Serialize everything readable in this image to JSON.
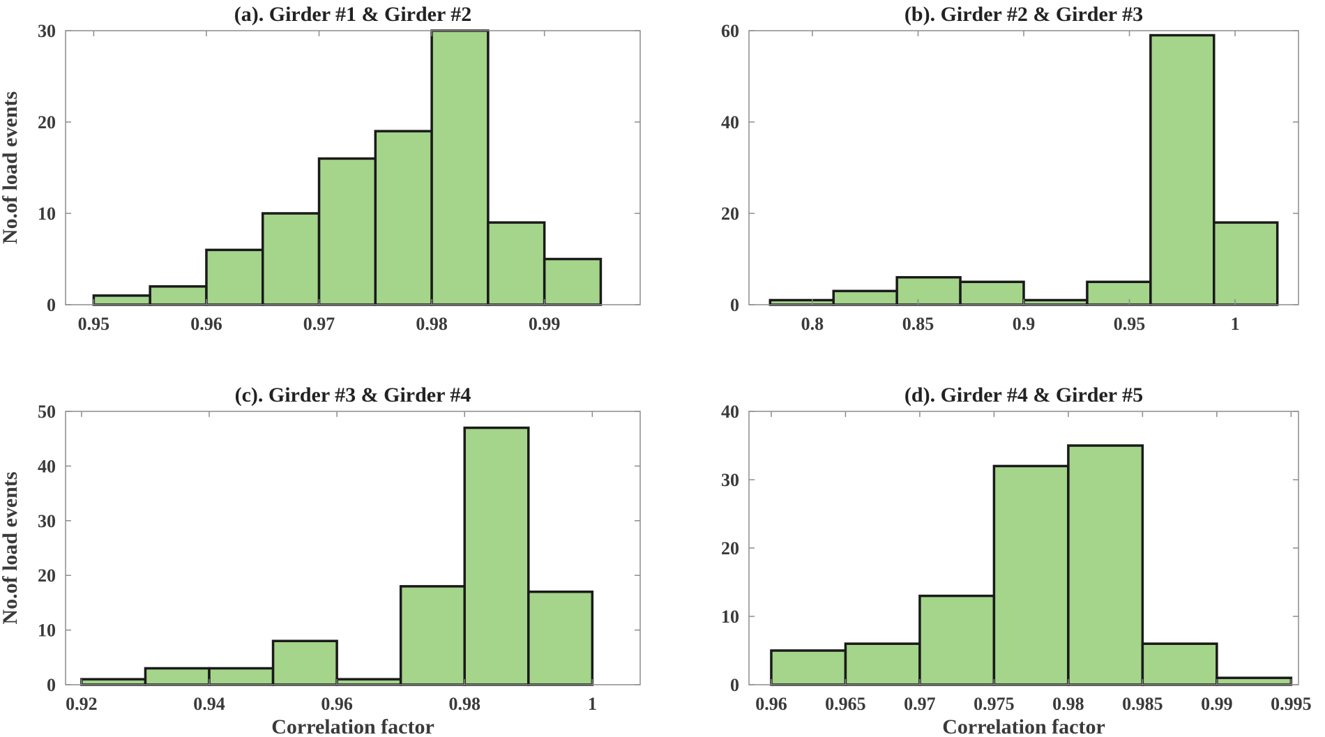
{
  "colors": {
    "bar_fill": "#a4d58a",
    "bar_edge": "#1a1a1a",
    "axis": "#8c8c8c",
    "text": "#3a3a3a"
  },
  "chart_data": [
    {
      "type": "bar",
      "title": "(a). Girder #1 & Girder #2",
      "xlabel": "",
      "ylabel": "No.of load events",
      "xlim": [
        0.9475,
        0.9985
      ],
      "ylim": [
        0,
        30
      ],
      "xticks": [
        0.95,
        0.96,
        0.97,
        0.98,
        0.99
      ],
      "xtick_labels": [
        "0.95",
        "0.96",
        "0.97",
        "0.98",
        "0.99"
      ],
      "yticks": [
        0,
        10,
        20,
        30
      ],
      "ytick_labels": [
        "0",
        "10",
        "20",
        "30"
      ],
      "bin_edges": [
        0.95,
        0.955,
        0.96,
        0.965,
        0.97,
        0.975,
        0.98,
        0.985,
        0.99,
        0.995
      ],
      "values": [
        1,
        2,
        6,
        10,
        16,
        19,
        30,
        9,
        5
      ]
    },
    {
      "type": "bar",
      "title": "(b). Girder #2 & Girder #3",
      "xlabel": "",
      "ylabel": "",
      "xlim": [
        0.77,
        1.03
      ],
      "ylim": [
        0,
        60
      ],
      "xticks": [
        0.8,
        0.85,
        0.9,
        0.95,
        1.0
      ],
      "xtick_labels": [
        "0.8",
        "0.85",
        "0.9",
        "0.95",
        "1"
      ],
      "yticks": [
        0,
        20,
        40,
        60
      ],
      "ytick_labels": [
        "0",
        "20",
        "40",
        "60"
      ],
      "bin_edges": [
        0.78,
        0.81,
        0.84,
        0.87,
        0.9,
        0.93,
        0.96,
        0.99,
        1.02
      ],
      "values": [
        1,
        3,
        6,
        5,
        1,
        5,
        59,
        18
      ]
    },
    {
      "type": "bar",
      "title": "(c). Girder #3 & Girder #4",
      "xlabel": "Correlation factor",
      "ylabel": "No.of load events",
      "xlim": [
        0.9175,
        1.0075
      ],
      "ylim": [
        0,
        50
      ],
      "xticks": [
        0.92,
        0.94,
        0.96,
        0.98,
        1.0
      ],
      "xtick_labels": [
        "0.92",
        "0.94",
        "0.96",
        "0.98",
        "1"
      ],
      "yticks": [
        0,
        10,
        20,
        30,
        40,
        50
      ],
      "ytick_labels": [
        "0",
        "10",
        "20",
        "30",
        "40",
        "50"
      ],
      "bin_edges": [
        0.92,
        0.93,
        0.94,
        0.95,
        0.96,
        0.97,
        0.98,
        0.99,
        1.0
      ],
      "values": [
        1,
        3,
        3,
        8,
        1,
        18,
        47,
        17
      ]
    },
    {
      "type": "bar",
      "title": "(d). Girder #4 & Girder #5",
      "xlabel": "Correlation factor",
      "ylabel": "",
      "xlim": [
        0.9585,
        0.9955
      ],
      "ylim": [
        0,
        40
      ],
      "xticks": [
        0.96,
        0.965,
        0.97,
        0.975,
        0.98,
        0.985,
        0.99,
        0.995
      ],
      "xtick_labels": [
        "0.96",
        "0.965",
        "0.97",
        "0.975",
        "0.98",
        "0.985",
        "0.99",
        "0.995"
      ],
      "yticks": [
        0,
        10,
        20,
        30,
        40
      ],
      "ytick_labels": [
        "0",
        "10",
        "20",
        "30",
        "40"
      ],
      "bin_edges": [
        0.96,
        0.965,
        0.97,
        0.975,
        0.98,
        0.985,
        0.99,
        0.995
      ],
      "values": [
        5,
        6,
        13,
        32,
        35,
        6,
        1
      ]
    }
  ]
}
